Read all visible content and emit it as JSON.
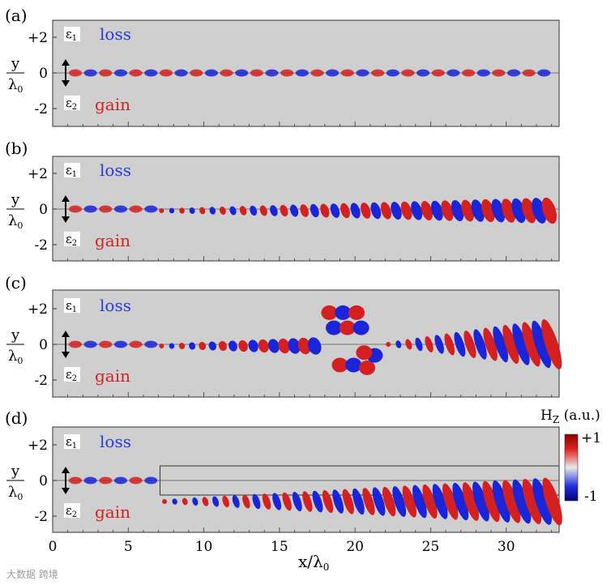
{
  "figure": {
    "quantity_label": "H",
    "quantity_sub": "Z",
    "quantity_unit": " (a.u.)",
    "colorbar_max_label": "+1",
    "colorbar_min_label": "-1",
    "colors": {
      "positive": "#d42020",
      "negative": "#1a24d8",
      "background": "#cfcfcf"
    }
  },
  "panels": [
    {
      "tag": "(a)",
      "loss_label": "loss",
      "gain_label": "gain",
      "eps1": "ε",
      "eps1_sub": "1",
      "eps2": "ε",
      "eps2_sub": "2"
    },
    {
      "tag": "(b)",
      "loss_label": "loss",
      "gain_label": "gain",
      "eps1": "ε",
      "eps1_sub": "1",
      "eps2": "ε",
      "eps2_sub": "2"
    },
    {
      "tag": "(c)",
      "loss_label": "loss",
      "gain_label": "gain",
      "eps1": "ε",
      "eps1_sub": "1",
      "eps2": "ε",
      "eps2_sub": "2"
    },
    {
      "tag": "(d)",
      "loss_label": "loss",
      "gain_label": "gain",
      "eps1": "ε",
      "eps1_sub": "1",
      "eps2": "ε",
      "eps2_sub": "2"
    }
  ],
  "y_axis": {
    "ticks": [
      "+2",
      "0",
      "-2"
    ],
    "label_top": "y",
    "label_bottom": "λ",
    "label_bottom_sub": "0"
  },
  "x_axis": {
    "ticks": [
      "0",
      "5",
      "10",
      "15",
      "20",
      "25",
      "30"
    ],
    "label": "x/λ",
    "label_sub": "0"
  },
  "watermark": "大数据 跨境"
}
